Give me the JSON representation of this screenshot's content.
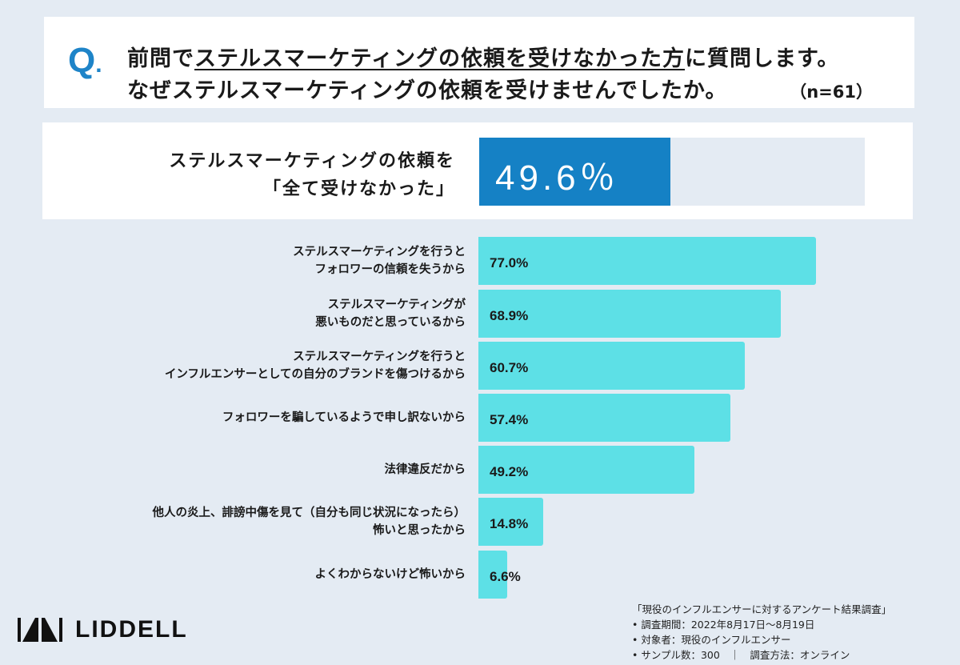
{
  "question": {
    "mark": "Q",
    "mark_dot": ".",
    "line1_pre": "前問で",
    "line1_underlined": "ステルスマーケティングの依頼を受けなかった方",
    "line1_post": "に質問します。",
    "line2": "なぜステルスマーケティングの依頼を受けませんでしたか。",
    "n": "（n=61）"
  },
  "headline": {
    "label_line1": "ステルスマーケティングの依頼を",
    "label_line2": "「全て受けなかった」",
    "value_text": "49.6％",
    "value": 49.6,
    "color": "#1581c5"
  },
  "chart_data": {
    "type": "bar",
    "orientation": "horizontal",
    "xlim": [
      0,
      100
    ],
    "bar_color": "#5de0e6",
    "categories": [
      [
        "ステルスマーケティングを行うと",
        "フォロワーの信頼を失うから"
      ],
      [
        "ステルスマーケティングが",
        "悪いものだと思っているから"
      ],
      [
        "ステルスマーケティングを行うと",
        "インフルエンサーとしての自分のブランドを傷つけるから"
      ],
      [
        "フォロワーを騙しているようで申し訳ないから"
      ],
      [
        "法律違反だから"
      ],
      [
        "他人の炎上、誹謗中傷を見て（自分も同じ状況になったら）",
        "怖いと思ったから"
      ],
      [
        "よくわからないけど怖いから"
      ]
    ],
    "values": [
      77.0,
      68.9,
      60.7,
      57.4,
      49.2,
      14.8,
      6.6
    ],
    "value_labels": [
      "77.0%",
      "68.9%",
      "60.7%",
      "57.4%",
      "49.2%",
      "14.8%",
      "6.6%"
    ]
  },
  "brand": {
    "name": "LIDDELL"
  },
  "footnote": [
    "「現役のインフルエンサーに対するアンケート結果調査」",
    "• 調査期間：2022年8月17日～8月19日",
    "• 対象者：現役のインフルエンサー",
    "• サンプル数：300　｜　調査方法：オンライン"
  ]
}
